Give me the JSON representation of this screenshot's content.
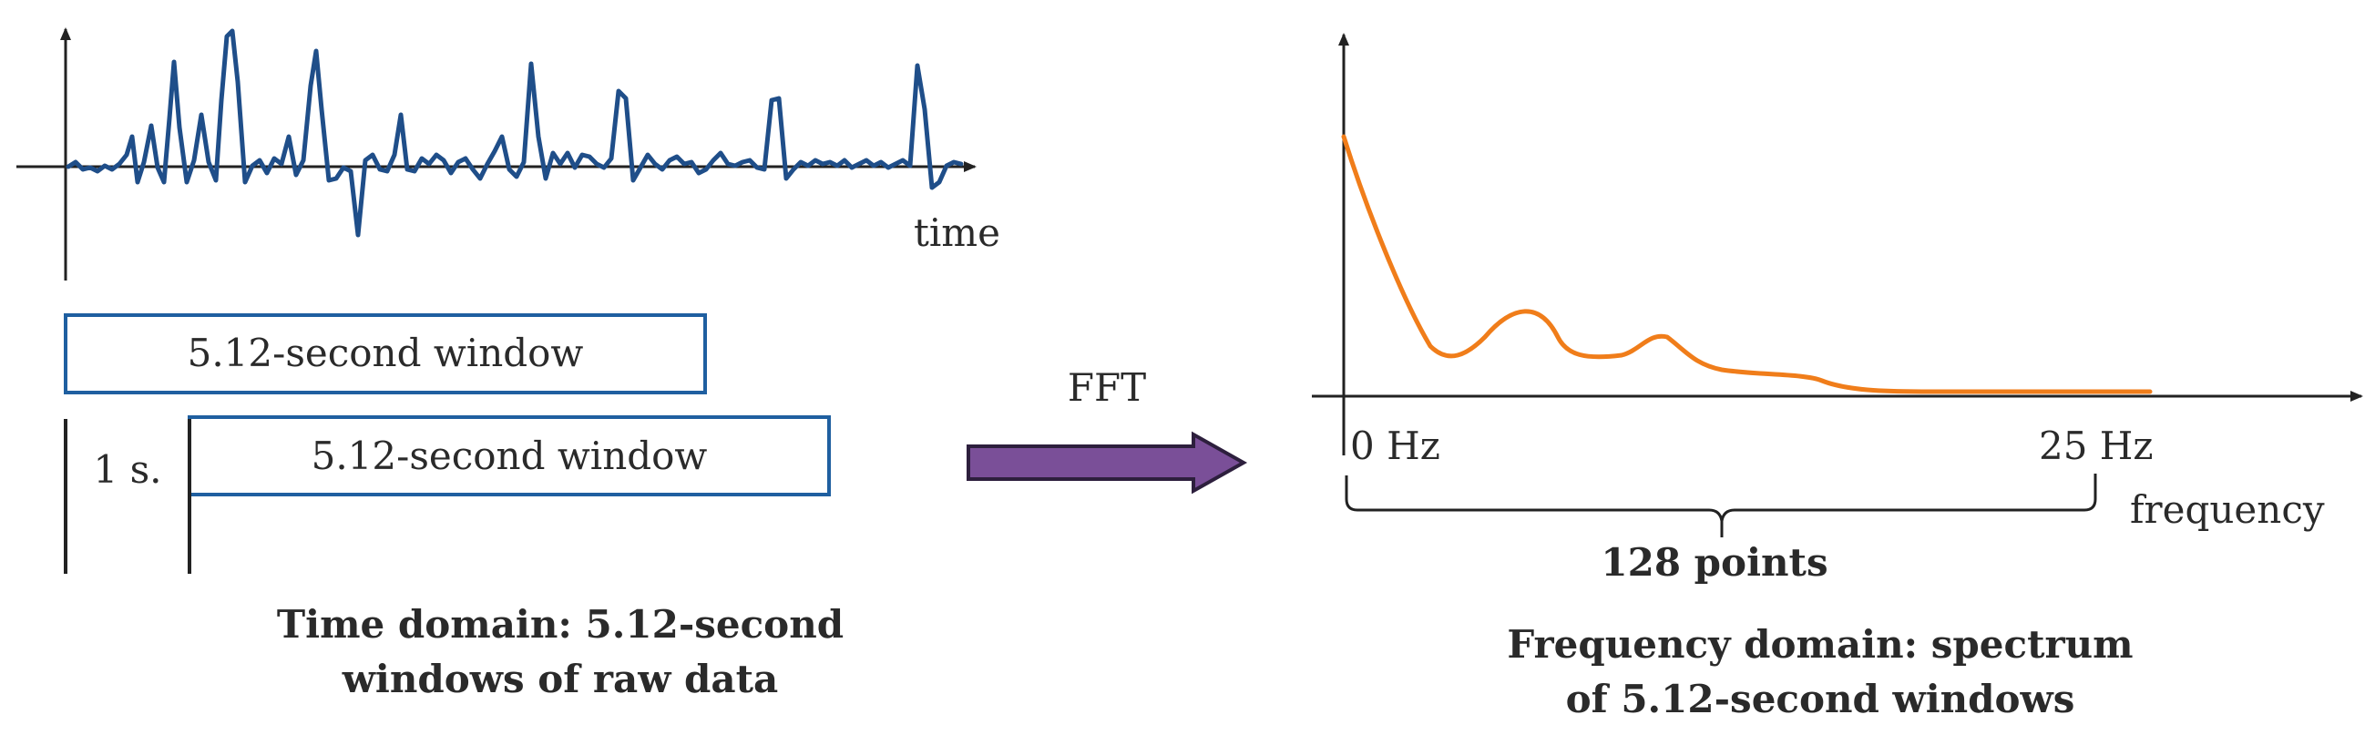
{
  "time_domain": {
    "axis_label": "time",
    "window1_label": "5.12-second window",
    "window2_label": "5.12-second window",
    "step_label": "1 s.",
    "caption_line1": "Time domain: 5.12-second",
    "caption_line2": "windows of raw data"
  },
  "transform": {
    "label": "FFT"
  },
  "frequency_domain": {
    "start_label": "0 Hz",
    "end_label": "25 Hz",
    "axis_label": "frequency",
    "points_label": "128 points",
    "caption_line1": "Frequency domain: spectrum",
    "caption_line2": "of 5.12-second windows"
  },
  "colors": {
    "signal": "#1f4e89",
    "spectrum": "#f07d1a",
    "window_border": "#1f5fa0",
    "arrow_fill": "#7a4f98",
    "arrow_outline": "#2d1f3d",
    "axis": "#222222"
  }
}
